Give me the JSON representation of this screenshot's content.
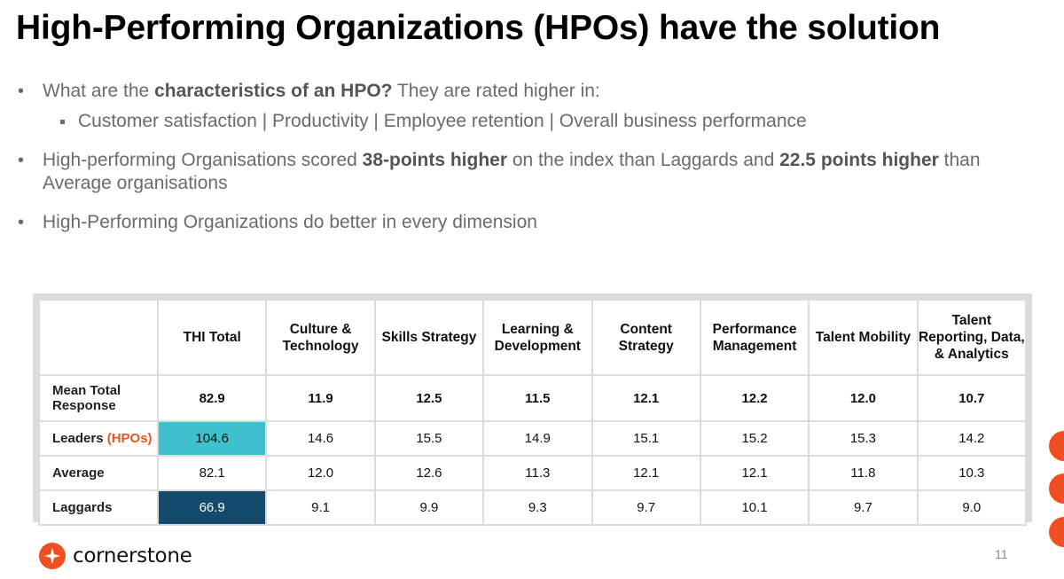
{
  "title": "High-Performing Organizations (HPOs) have the solution",
  "bullets": {
    "b1_pre": "What are the ",
    "b1_bold": "characteristics of an HPO?",
    "b1_post": " They are rated higher in:",
    "b1_sub": "Customer satisfaction | Productivity | Employee retention | Overall business performance",
    "b2_pre": "High-performing Organisations scored ",
    "b2_bold1": "38-points higher",
    "b2_mid": " on the index than Laggards and ",
    "b2_bold2": "22.5 points higher",
    "b2_post": " than Average organisations",
    "b3": "High-Performing Organizations do better in every dimension"
  },
  "table": {
    "headers": [
      "THI Total",
      "Culture & Technology",
      "Skills Strategy",
      "Learning & Development",
      "Content Strategy",
      "Performance Management",
      "Talent Mobility",
      "Talent Reporting, Data, & Analytics"
    ],
    "rows": [
      {
        "label": "Mean Total Response",
        "values": [
          "82.9",
          "11.9",
          "12.5",
          "11.5",
          "12.1",
          "12.2",
          "12.0",
          "10.7"
        ]
      },
      {
        "label": "Leaders",
        "label_suffix": "(HPOs)",
        "values": [
          "104.6",
          "14.6",
          "15.5",
          "14.9",
          "15.1",
          "15.2",
          "15.3",
          "14.2"
        ]
      },
      {
        "label": "Average",
        "values": [
          "82.1",
          "12.0",
          "12.6",
          "11.3",
          "12.1",
          "12.1",
          "11.8",
          "10.3"
        ]
      },
      {
        "label": "Laggards",
        "values": [
          "66.9",
          "9.1",
          "9.9",
          "9.3",
          "9.7",
          "10.1",
          "9.7",
          "9.0"
        ]
      }
    ],
    "colors": {
      "leader_highlight": "#3ec1cc",
      "laggard_highlight": "#134a6e",
      "hpo_text": "#e8561c"
    }
  },
  "footer": {
    "logo_text": "cornerstone",
    "logo_icon": "cornerstone-star-icon",
    "page_number": "11",
    "accent_color": "#f04e23"
  }
}
